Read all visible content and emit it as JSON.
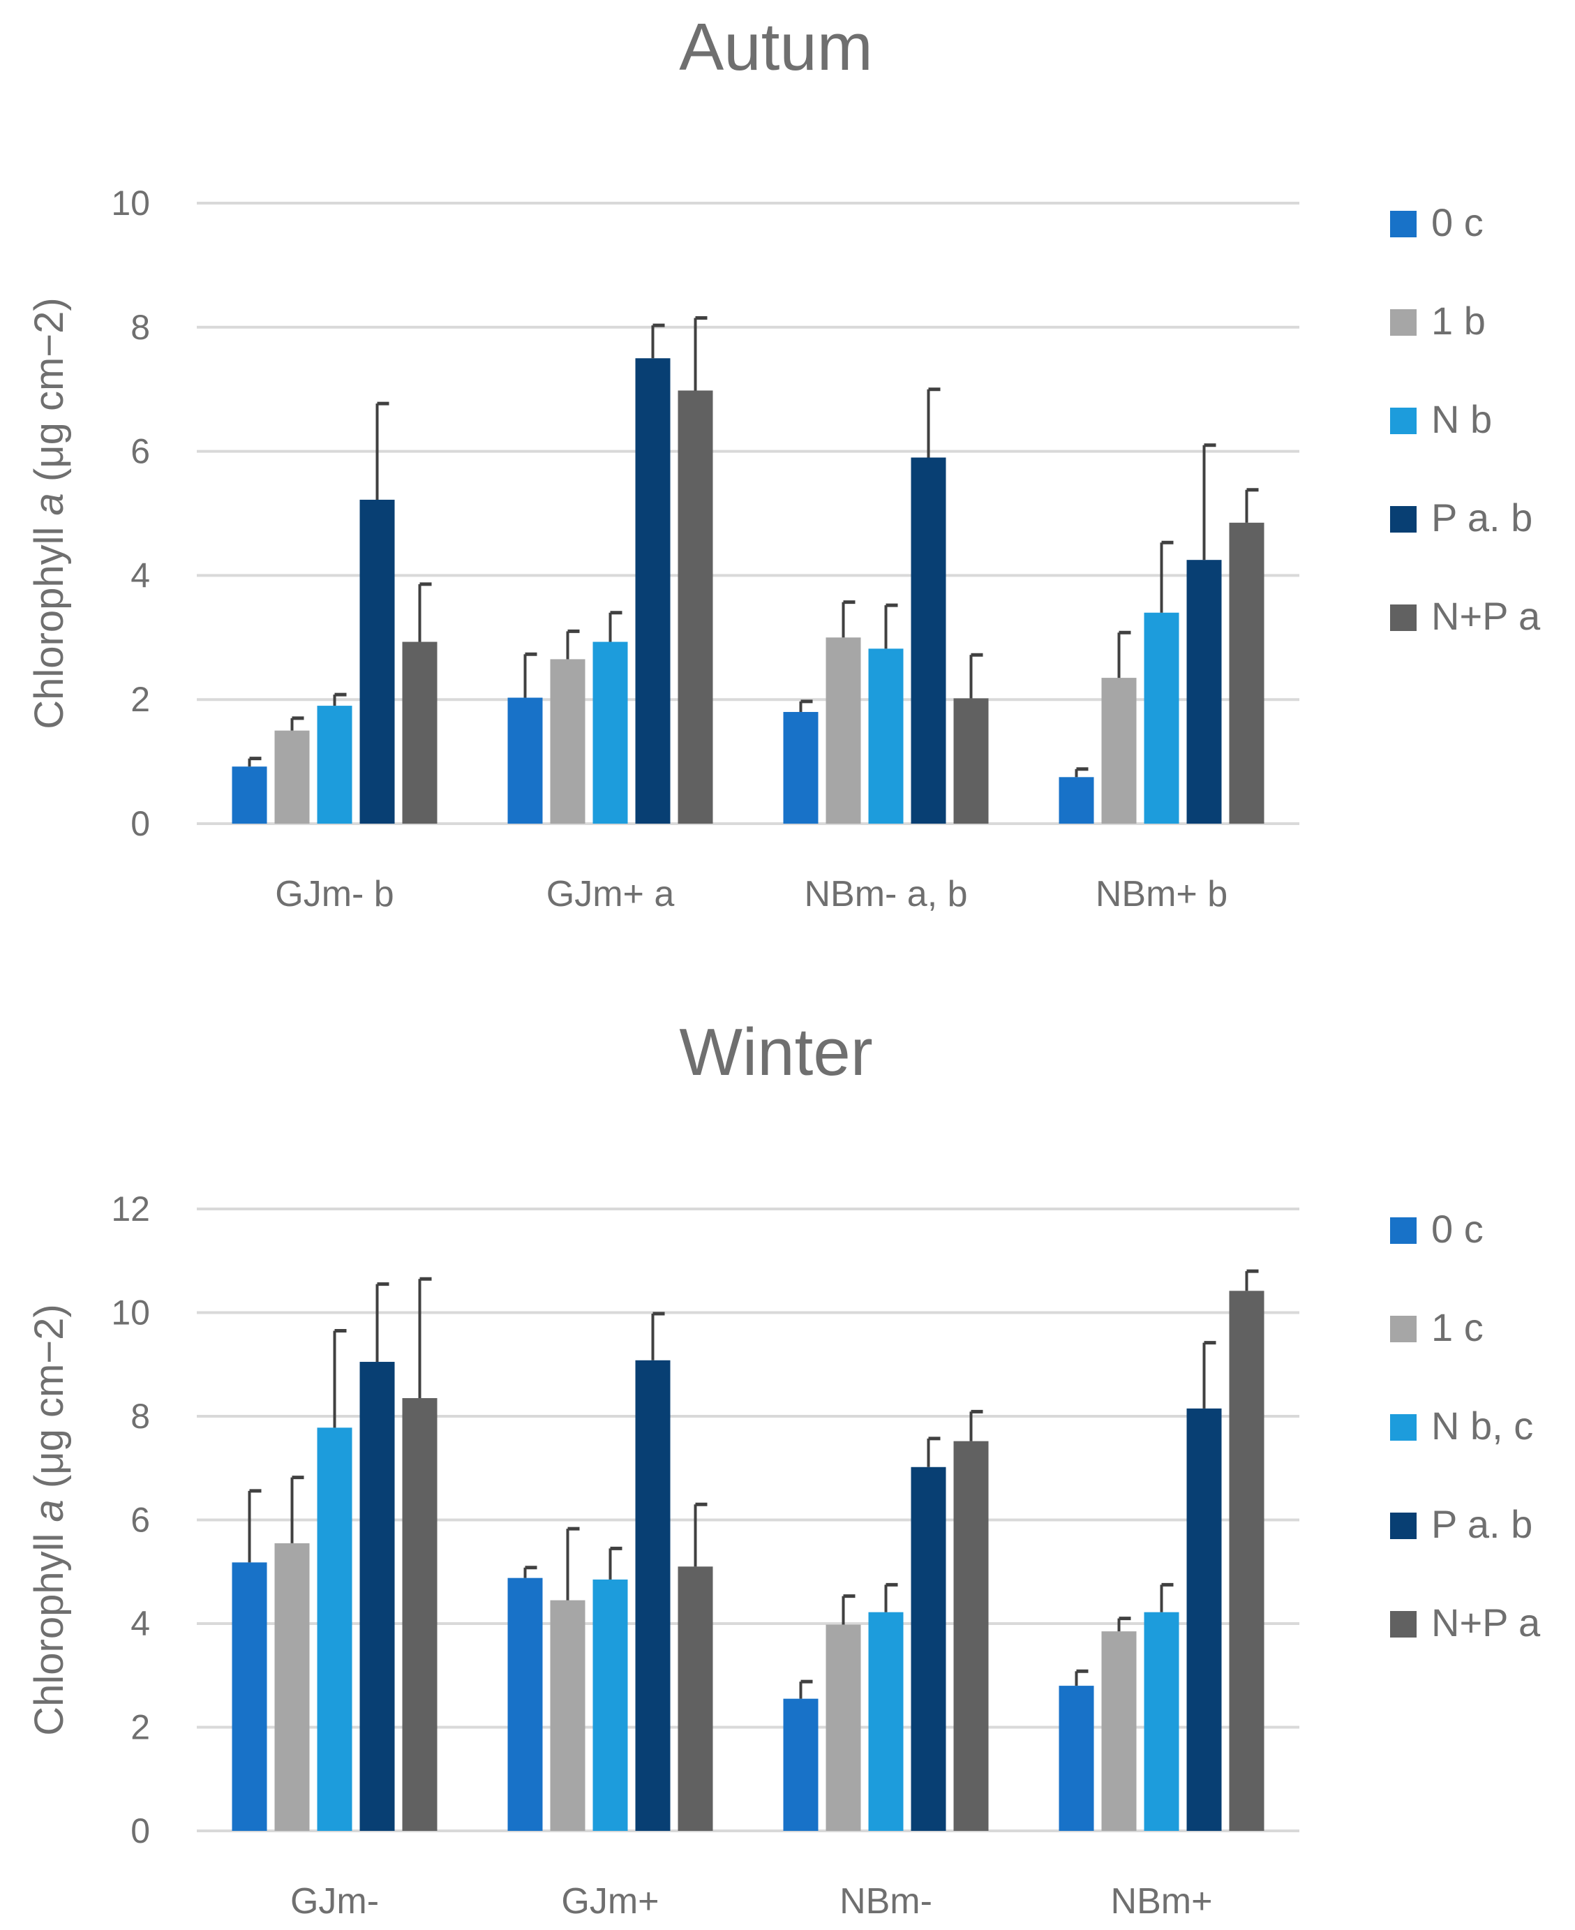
{
  "colors": {
    "series": [
      "#1872c8",
      "#a6a6a6",
      "#1d9cdc",
      "#083f73",
      "#616161"
    ],
    "grid": "#d9d9d9",
    "text": "#6f6f6f",
    "error_bar": "#404040"
  },
  "chart_data": [
    {
      "type": "bar",
      "title": "Autum",
      "ylabel_prefix": "Chlorophyll ",
      "ylabel_italic": "a",
      "ylabel_suffix": " (μg cm−2)",
      "ylim": [
        0,
        10
      ],
      "yticks": [
        0,
        2,
        4,
        6,
        8,
        10
      ],
      "grid": true,
      "legend_position": "right",
      "categories": [
        "GJm- b",
        "GJm+ a",
        "NBm- a, b",
        "NBm+ b"
      ],
      "series": [
        {
          "name": "0 c",
          "values": [
            0.92,
            2.03,
            1.8,
            0.75
          ],
          "errors": [
            0.13,
            0.7,
            0.17,
            0.13
          ]
        },
        {
          "name": "1 b",
          "values": [
            1.5,
            2.65,
            3.0,
            2.35
          ],
          "errors": [
            0.2,
            0.45,
            0.57,
            0.73
          ]
        },
        {
          "name": "N b",
          "values": [
            1.9,
            2.93,
            2.82,
            3.4
          ],
          "errors": [
            0.18,
            0.47,
            0.7,
            1.13
          ]
        },
        {
          "name": "P a. b",
          "values": [
            5.22,
            7.5,
            5.9,
            4.25
          ],
          "errors": [
            1.55,
            0.53,
            1.1,
            1.85
          ]
        },
        {
          "name": "N+P a",
          "values": [
            2.93,
            6.98,
            2.02,
            4.85
          ],
          "errors": [
            0.93,
            1.17,
            0.7,
            0.53
          ]
        }
      ]
    },
    {
      "type": "bar",
      "title": "Winter",
      "ylabel_prefix": "Chlorophyll ",
      "ylabel_italic": "a",
      "ylabel_suffix": " (μg cm−2)",
      "ylim": [
        0,
        12
      ],
      "yticks": [
        0,
        2,
        4,
        6,
        8,
        10,
        12
      ],
      "grid": true,
      "legend_position": "right",
      "categories": [
        "GJm-",
        "GJm+",
        "NBm-",
        "NBm+"
      ],
      "series": [
        {
          "name": "0 c",
          "values": [
            5.18,
            4.88,
            2.55,
            2.8
          ],
          "errors": [
            1.38,
            0.2,
            0.33,
            0.28
          ]
        },
        {
          "name": "1 c",
          "values": [
            5.55,
            4.45,
            3.98,
            3.85
          ],
          "errors": [
            1.27,
            1.38,
            0.55,
            0.25
          ]
        },
        {
          "name": "N b, c",
          "values": [
            7.78,
            4.85,
            4.22,
            4.22
          ],
          "errors": [
            1.87,
            0.6,
            0.53,
            0.53
          ]
        },
        {
          "name": "P a. b",
          "values": [
            9.05,
            9.08,
            7.02,
            8.15
          ],
          "errors": [
            1.5,
            0.9,
            0.55,
            1.27
          ]
        },
        {
          "name": "N+P a",
          "values": [
            8.35,
            5.1,
            7.52,
            10.42
          ],
          "errors": [
            2.3,
            1.2,
            0.57,
            0.38
          ]
        }
      ]
    }
  ]
}
